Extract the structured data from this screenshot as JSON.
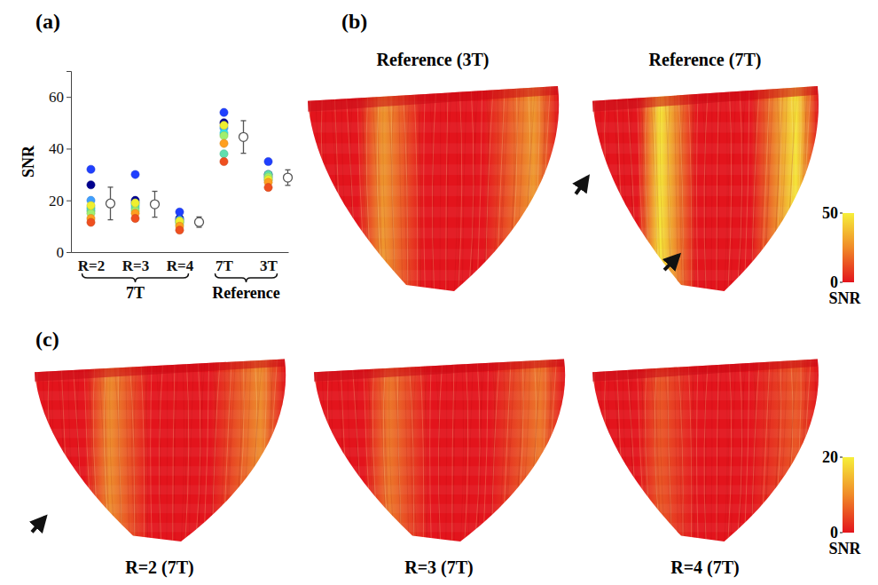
{
  "chart_data": [
    {
      "type": "scatter",
      "panel": "(a)",
      "y_label": "SNR",
      "categories": [
        "R=2",
        "R=3",
        "R=4",
        "7T",
        "3T"
      ],
      "groups": [
        {
          "label": "7T",
          "from": "R=2",
          "to": "R=4"
        },
        {
          "label": "Reference",
          "from": "7T",
          "to": "3T"
        }
      ],
      "ylim": [
        0,
        70
      ],
      "yticks": [
        0,
        20,
        40,
        60
      ],
      "series": [
        {
          "color": "#00008f",
          "marker": "circle",
          "values": [
            26,
            20,
            13,
            50,
            30
          ]
        },
        {
          "color": "#1f3fff",
          "marker": "circle",
          "values": [
            32,
            30,
            15.5,
            54,
            35
          ]
        },
        {
          "color": "#3f9fff",
          "marker": "circle",
          "values": [
            20,
            19,
            12.5,
            48,
            29
          ]
        },
        {
          "color": "#2fdfef",
          "marker": "circle",
          "values": [
            17,
            18,
            12,
            46,
            28
          ]
        },
        {
          "color": "#5fdfaf",
          "marker": "circle",
          "values": [
            16,
            17,
            11.5,
            38,
            30
          ]
        },
        {
          "color": "#9fef6f",
          "marker": "circle",
          "values": [
            15,
            16,
            11,
            45,
            29
          ]
        },
        {
          "color": "#efef2f",
          "marker": "circle",
          "values": [
            18,
            19,
            12,
            49,
            28
          ]
        },
        {
          "color": "#ff9f1f",
          "marker": "circle",
          "values": [
            13,
            15,
            10,
            42,
            27
          ]
        },
        {
          "color": "#ef4f1f",
          "marker": "circle",
          "values": [
            11.5,
            13,
            8.5,
            35,
            25
          ]
        },
        {
          "type": "errorbar",
          "marker": "open-circle",
          "color": "#555555",
          "values": [
            18.8,
            18.5,
            11.6,
            44.5,
            28.8
          ],
          "errors": [
            6.3,
            5,
            2,
            6.3,
            3
          ]
        }
      ]
    },
    {
      "type": "image",
      "panel": "(b)",
      "images": [
        {
          "title": "Reference (3T)"
        },
        {
          "title": "Reference (7T)"
        }
      ],
      "colorbar": {
        "label": "SNR",
        "range": [
          0,
          50
        ],
        "ticks": [
          0,
          50
        ]
      }
    },
    {
      "type": "image",
      "panel": "(c)",
      "images": [
        {
          "caption": "R=2 (7T)"
        },
        {
          "caption": "R=3 (7T)"
        },
        {
          "caption": "R=4 (7T)"
        }
      ],
      "colorbar": {
        "label": "SNR",
        "range": [
          0,
          20
        ],
        "ticks": [
          0,
          20
        ]
      }
    }
  ]
}
